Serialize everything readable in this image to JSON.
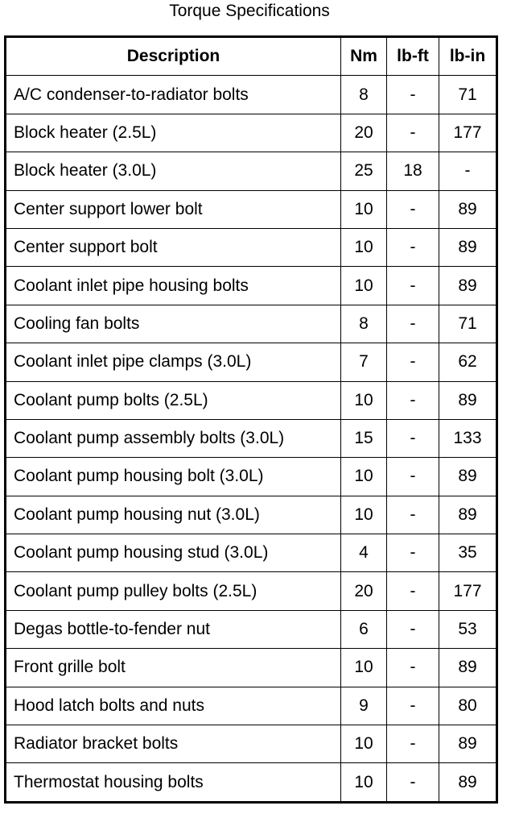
{
  "header": {
    "title": "Torque Specifications"
  },
  "table": {
    "columns": [
      "Description",
      "Nm",
      "lb-ft",
      "lb-in"
    ],
    "rows": [
      [
        "A/C condenser-to-radiator bolts",
        8,
        "-",
        71
      ],
      [
        "Block heater (2.5L)",
        20,
        "-",
        177
      ],
      [
        "Block heater (3.0L)",
        25,
        18,
        "-"
      ],
      [
        "Center support lower bolt",
        10,
        "-",
        89
      ],
      [
        "Center support bolt",
        10,
        "-",
        89
      ],
      [
        "Coolant inlet pipe housing bolts",
        10,
        "-",
        89
      ],
      [
        "Cooling fan bolts",
        8,
        "-",
        71
      ],
      [
        "Coolant inlet pipe clamps (3.0L)",
        7,
        "-",
        62
      ],
      [
        "Coolant pump bolts (2.5L)",
        10,
        "-",
        89
      ],
      [
        "Coolant pump assembly bolts (3.0L)",
        15,
        "-",
        133
      ],
      [
        "Coolant pump housing bolt (3.0L)",
        10,
        "-",
        89
      ],
      [
        "Coolant pump housing nut (3.0L)",
        10,
        "-",
        89
      ],
      [
        "Coolant pump housing stud (3.0L)",
        4,
        "-",
        35
      ],
      [
        "Coolant pump pulley bolts (2.5L)",
        20,
        "-",
        177
      ],
      [
        "Degas bottle-to-fender nut",
        6,
        "-",
        53
      ],
      [
        "Front grille bolt",
        10,
        "-",
        89
      ],
      [
        "Hood latch bolts and nuts",
        9,
        "-",
        80
      ],
      [
        "Radiator bracket bolts",
        10,
        "-",
        89
      ],
      [
        "Thermostat housing bolts",
        10,
        "-",
        89
      ]
    ]
  }
}
